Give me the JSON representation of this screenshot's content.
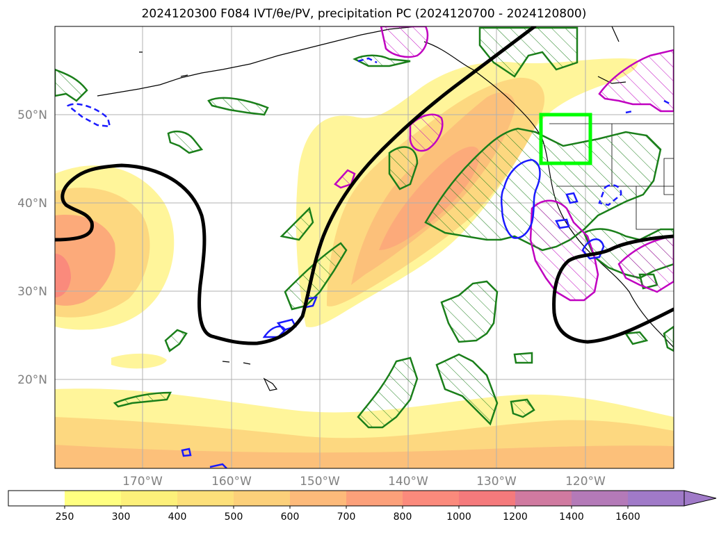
{
  "title": "2024120300 F084 IVT/θe/PV, precipitation PC (2024120700 - 2024120800)",
  "map": {
    "lat_labels": [
      "50°N",
      "40°N",
      "30°N",
      "20°N"
    ],
    "lon_labels": [
      "170°W",
      "160°W",
      "150°W",
      "140°W",
      "130°W",
      "120°W"
    ]
  },
  "colorbar": {
    "levels": [
      "250",
      "300",
      "400",
      "500",
      "600",
      "700",
      "800",
      "1000",
      "1200",
      "1400",
      "1600"
    ],
    "colors": [
      "#ffffff",
      "#ffff80",
      "#fdf07a",
      "#fde07a",
      "#fcd07a",
      "#fdba7a",
      "#fca07a",
      "#fb8a7c",
      "#f57a7c",
      "#d07aa0",
      "#b47ab8",
      "#a07ac8"
    ]
  },
  "colors": {
    "ivt_light": "#fff59a",
    "ivt_mid": "#fdd880",
    "ivt_core": "#fcaa7a",
    "ivt_max": "#fa8a7c",
    "theta_e": "#000000",
    "precip": "#1a7f1a",
    "pv_pos": "#c000c0",
    "pv_neg": "#1a1aff",
    "box": "#00ff00",
    "grid": "#b0b0b0"
  }
}
